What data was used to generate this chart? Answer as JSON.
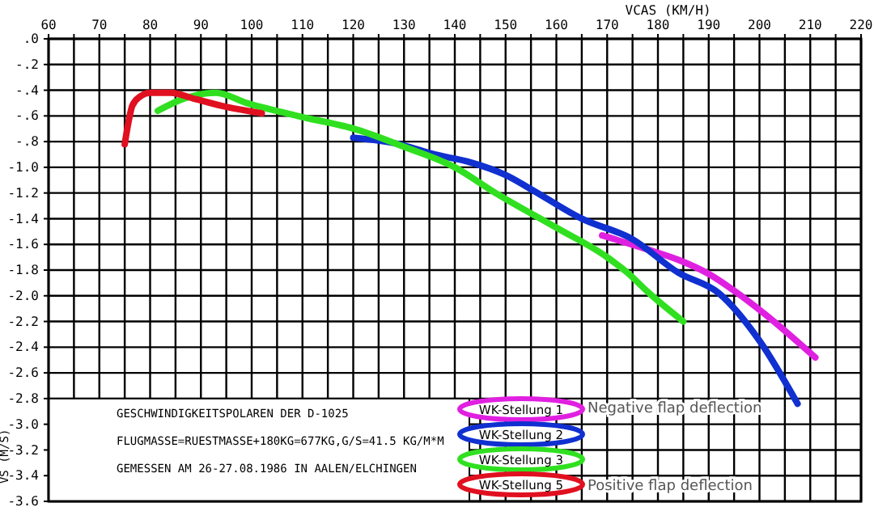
{
  "chart_data": {
    "type": "line",
    "xlabel": "VCAS (KM/H)",
    "ylabel": "VS (M/S)",
    "xlim": [
      60,
      220
    ],
    "xticks": [
      60,
      {
        "value": 65,
        "label": null
      },
      70,
      {
        "value": 75,
        "label": null
      },
      80,
      {
        "value": 85,
        "label": null
      },
      90,
      {
        "value": 95,
        "label": null
      },
      100,
      {
        "value": 105,
        "label": null
      },
      110,
      {
        "value": 115,
        "label": null
      },
      120,
      {
        "value": 125,
        "label": null
      },
      130,
      {
        "value": 135,
        "label": null
      },
      140,
      {
        "value": 145,
        "label": null
      },
      150,
      {
        "value": 155,
        "label": null
      },
      160,
      {
        "value": 165,
        "label": null
      },
      170,
      {
        "value": 175,
        "label": null
      },
      180,
      {
        "value": 185,
        "label": null
      },
      190,
      {
        "value": 195,
        "label": null
      },
      200,
      {
        "value": 205,
        "label": null
      },
      210,
      {
        "value": 215,
        "label": null
      },
      220
    ],
    "ylim": [
      -3.6,
      0
    ],
    "yticks": [
      {
        "value": 0,
        "label": ".0"
      },
      {
        "value": -0.2,
        "label": "-.2"
      },
      {
        "value": -0.4,
        "label": "-.4"
      },
      {
        "value": -0.6,
        "label": "-.6"
      },
      {
        "value": -0.8,
        "label": "-.8"
      },
      {
        "value": -1.0,
        "label": "-1.0"
      },
      {
        "value": -1.2,
        "label": "-1.2"
      },
      {
        "value": -1.4,
        "label": "-1.4"
      },
      {
        "value": -1.6,
        "label": "-1.6"
      },
      {
        "value": -1.8,
        "label": "-1.8"
      },
      {
        "value": -2.0,
        "label": "-2.0"
      },
      {
        "value": -2.2,
        "label": "-2.2"
      },
      {
        "value": -2.4,
        "label": "-2.4"
      },
      {
        "value": -2.6,
        "label": "-2.6"
      },
      {
        "value": -2.8,
        "label": "-2.8"
      },
      {
        "value": -3.0,
        "label": "-3.0"
      },
      {
        "value": -3.2,
        "label": "-3.2"
      },
      {
        "value": -3.4,
        "label": "-3.4"
      },
      {
        "value": -3.6,
        "label": "-3.6"
      }
    ],
    "grid": true,
    "legend": "bottom",
    "series": [
      {
        "name": "WK-Stellung 1",
        "color": "#e020e0",
        "x": [
          169,
          178,
          184,
          190,
          195,
          201,
          211
        ],
        "values": [
          -1.53,
          -1.64,
          -1.72,
          -1.83,
          -1.96,
          -2.14,
          -2.48
        ]
      },
      {
        "name": "WK-Stellung 2",
        "color": "#1030d0",
        "x": [
          120,
          129,
          136,
          143,
          150,
          155,
          165,
          175,
          184,
          192,
          200,
          207.5
        ],
        "values": [
          -0.77,
          -0.82,
          -0.9,
          -0.96,
          -1.06,
          -1.17,
          -1.4,
          -1.56,
          -1.82,
          -1.98,
          -2.35,
          -2.84
        ]
      },
      {
        "name": "WK-Stellung 3",
        "color": "#30e020",
        "x": [
          81.5,
          87,
          93,
          99,
          109,
          121,
          130,
          140,
          148,
          160,
          170,
          174,
          178,
          185
        ],
        "values": [
          -0.56,
          -0.46,
          -0.42,
          -0.5,
          -0.6,
          -0.71,
          -0.84,
          -1.0,
          -1.2,
          -1.47,
          -1.7,
          -1.82,
          -1.97,
          -2.2
        ]
      },
      {
        "name": "WK-Stellung 5",
        "color": "#e01020",
        "x": [
          75,
          75.5,
          76.5,
          78,
          80,
          84,
          89,
          95,
          102
        ],
        "values": [
          -0.82,
          -0.7,
          -0.52,
          -0.45,
          -0.42,
          -0.42,
          -0.47,
          -0.53,
          -0.58
        ]
      }
    ],
    "annotations": [
      "GESCHWINDIGKEITSPOLAREN DER D-1025",
      "FLUGMASSE=RUESTMASSE+180KG=677KG,G/S=41.5 KG/M*M",
      "GEMESSEN AM 26-27.08.1986 IN AALEN/ELCHINGEN",
      "Negative flap deflection",
      "Positive flap deflection"
    ]
  }
}
